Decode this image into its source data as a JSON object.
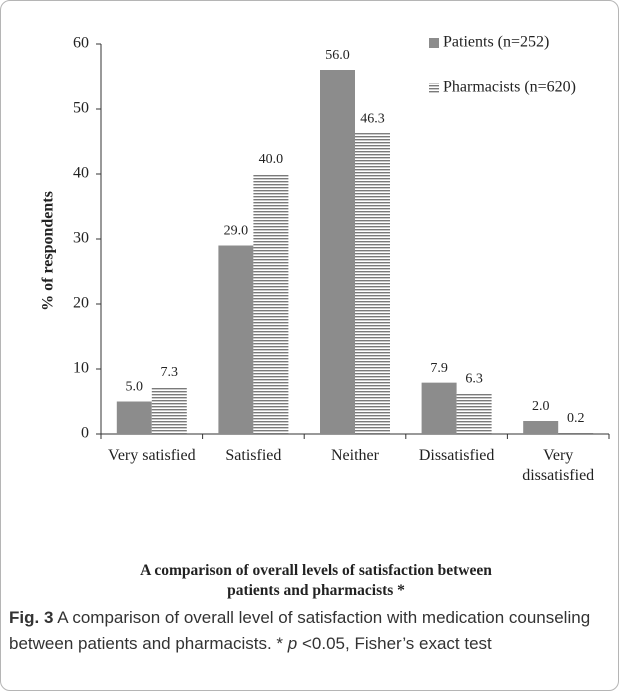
{
  "chart_data": {
    "type": "bar",
    "x_label": "A comparison of overall levels of satisfaction between patients and pharmacists *",
    "y_label": "% of respondents",
    "categories": [
      "Very satisfied",
      "Satisfied",
      "Neither",
      "Dissatisfied",
      "Very dissatisfied"
    ],
    "series": [
      {
        "name": "Patients (n=252)",
        "color": "#8c8c8c",
        "pattern": "solid",
        "values": [
          5.0,
          29.0,
          56.0,
          7.9,
          2.0
        ],
        "value_labels": [
          "5.0",
          "29.0",
          "56.0",
          "7.9",
          "2.0"
        ]
      },
      {
        "name": "Pharmacists (n=620)",
        "color": "#7a7a7a",
        "pattern": "horizontal-lines",
        "values": [
          7.3,
          40.0,
          46.3,
          6.3,
          0.2
        ],
        "value_labels": [
          "7.3",
          "40.0",
          "46.3",
          "6.3",
          "0.2"
        ]
      }
    ],
    "ylim": [
      0,
      60
    ],
    "yticks": [
      0,
      10,
      20,
      30,
      40,
      50,
      60
    ],
    "grid": false,
    "legend": "top-right"
  },
  "caption": {
    "label": "Fig. 3",
    "text": "A comparison of overall level of satisfaction with medication counseling between patients and pharmacists. *",
    "italic": "p",
    "text_end": "<0.05, Fisher’s exact test"
  }
}
